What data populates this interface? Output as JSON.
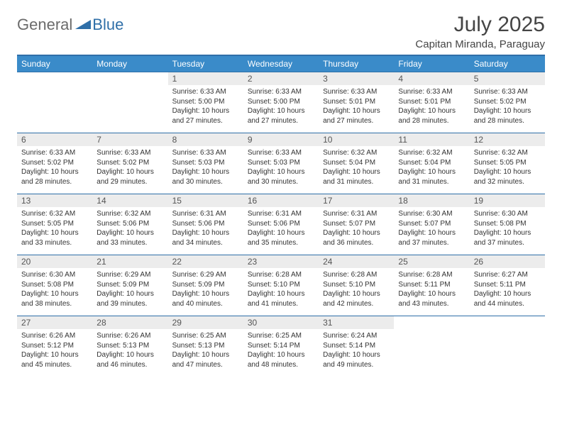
{
  "logo": {
    "general": "General",
    "blue": "Blue"
  },
  "title": "July 2025",
  "location": "Capitan Miranda, Paraguay",
  "colors": {
    "header_bar": "#3a8bc9",
    "rule": "#2f6fa8",
    "daynum_bg": "#ececec"
  },
  "weekdays": [
    "Sunday",
    "Monday",
    "Tuesday",
    "Wednesday",
    "Thursday",
    "Friday",
    "Saturday"
  ],
  "weeks": [
    [
      null,
      null,
      {
        "n": "1",
        "sr": "Sunrise: 6:33 AM",
        "ss": "Sunset: 5:00 PM",
        "dl": "Daylight: 10 hours and 27 minutes."
      },
      {
        "n": "2",
        "sr": "Sunrise: 6:33 AM",
        "ss": "Sunset: 5:00 PM",
        "dl": "Daylight: 10 hours and 27 minutes."
      },
      {
        "n": "3",
        "sr": "Sunrise: 6:33 AM",
        "ss": "Sunset: 5:01 PM",
        "dl": "Daylight: 10 hours and 27 minutes."
      },
      {
        "n": "4",
        "sr": "Sunrise: 6:33 AM",
        "ss": "Sunset: 5:01 PM",
        "dl": "Daylight: 10 hours and 28 minutes."
      },
      {
        "n": "5",
        "sr": "Sunrise: 6:33 AM",
        "ss": "Sunset: 5:02 PM",
        "dl": "Daylight: 10 hours and 28 minutes."
      }
    ],
    [
      {
        "n": "6",
        "sr": "Sunrise: 6:33 AM",
        "ss": "Sunset: 5:02 PM",
        "dl": "Daylight: 10 hours and 28 minutes."
      },
      {
        "n": "7",
        "sr": "Sunrise: 6:33 AM",
        "ss": "Sunset: 5:02 PM",
        "dl": "Daylight: 10 hours and 29 minutes."
      },
      {
        "n": "8",
        "sr": "Sunrise: 6:33 AM",
        "ss": "Sunset: 5:03 PM",
        "dl": "Daylight: 10 hours and 30 minutes."
      },
      {
        "n": "9",
        "sr": "Sunrise: 6:33 AM",
        "ss": "Sunset: 5:03 PM",
        "dl": "Daylight: 10 hours and 30 minutes."
      },
      {
        "n": "10",
        "sr": "Sunrise: 6:32 AM",
        "ss": "Sunset: 5:04 PM",
        "dl": "Daylight: 10 hours and 31 minutes."
      },
      {
        "n": "11",
        "sr": "Sunrise: 6:32 AM",
        "ss": "Sunset: 5:04 PM",
        "dl": "Daylight: 10 hours and 31 minutes."
      },
      {
        "n": "12",
        "sr": "Sunrise: 6:32 AM",
        "ss": "Sunset: 5:05 PM",
        "dl": "Daylight: 10 hours and 32 minutes."
      }
    ],
    [
      {
        "n": "13",
        "sr": "Sunrise: 6:32 AM",
        "ss": "Sunset: 5:05 PM",
        "dl": "Daylight: 10 hours and 33 minutes."
      },
      {
        "n": "14",
        "sr": "Sunrise: 6:32 AM",
        "ss": "Sunset: 5:06 PM",
        "dl": "Daylight: 10 hours and 33 minutes."
      },
      {
        "n": "15",
        "sr": "Sunrise: 6:31 AM",
        "ss": "Sunset: 5:06 PM",
        "dl": "Daylight: 10 hours and 34 minutes."
      },
      {
        "n": "16",
        "sr": "Sunrise: 6:31 AM",
        "ss": "Sunset: 5:06 PM",
        "dl": "Daylight: 10 hours and 35 minutes."
      },
      {
        "n": "17",
        "sr": "Sunrise: 6:31 AM",
        "ss": "Sunset: 5:07 PM",
        "dl": "Daylight: 10 hours and 36 minutes."
      },
      {
        "n": "18",
        "sr": "Sunrise: 6:30 AM",
        "ss": "Sunset: 5:07 PM",
        "dl": "Daylight: 10 hours and 37 minutes."
      },
      {
        "n": "19",
        "sr": "Sunrise: 6:30 AM",
        "ss": "Sunset: 5:08 PM",
        "dl": "Daylight: 10 hours and 37 minutes."
      }
    ],
    [
      {
        "n": "20",
        "sr": "Sunrise: 6:30 AM",
        "ss": "Sunset: 5:08 PM",
        "dl": "Daylight: 10 hours and 38 minutes."
      },
      {
        "n": "21",
        "sr": "Sunrise: 6:29 AM",
        "ss": "Sunset: 5:09 PM",
        "dl": "Daylight: 10 hours and 39 minutes."
      },
      {
        "n": "22",
        "sr": "Sunrise: 6:29 AM",
        "ss": "Sunset: 5:09 PM",
        "dl": "Daylight: 10 hours and 40 minutes."
      },
      {
        "n": "23",
        "sr": "Sunrise: 6:28 AM",
        "ss": "Sunset: 5:10 PM",
        "dl": "Daylight: 10 hours and 41 minutes."
      },
      {
        "n": "24",
        "sr": "Sunrise: 6:28 AM",
        "ss": "Sunset: 5:10 PM",
        "dl": "Daylight: 10 hours and 42 minutes."
      },
      {
        "n": "25",
        "sr": "Sunrise: 6:28 AM",
        "ss": "Sunset: 5:11 PM",
        "dl": "Daylight: 10 hours and 43 minutes."
      },
      {
        "n": "26",
        "sr": "Sunrise: 6:27 AM",
        "ss": "Sunset: 5:11 PM",
        "dl": "Daylight: 10 hours and 44 minutes."
      }
    ],
    [
      {
        "n": "27",
        "sr": "Sunrise: 6:26 AM",
        "ss": "Sunset: 5:12 PM",
        "dl": "Daylight: 10 hours and 45 minutes."
      },
      {
        "n": "28",
        "sr": "Sunrise: 6:26 AM",
        "ss": "Sunset: 5:13 PM",
        "dl": "Daylight: 10 hours and 46 minutes."
      },
      {
        "n": "29",
        "sr": "Sunrise: 6:25 AM",
        "ss": "Sunset: 5:13 PM",
        "dl": "Daylight: 10 hours and 47 minutes."
      },
      {
        "n": "30",
        "sr": "Sunrise: 6:25 AM",
        "ss": "Sunset: 5:14 PM",
        "dl": "Daylight: 10 hours and 48 minutes."
      },
      {
        "n": "31",
        "sr": "Sunrise: 6:24 AM",
        "ss": "Sunset: 5:14 PM",
        "dl": "Daylight: 10 hours and 49 minutes."
      },
      null,
      null
    ]
  ]
}
